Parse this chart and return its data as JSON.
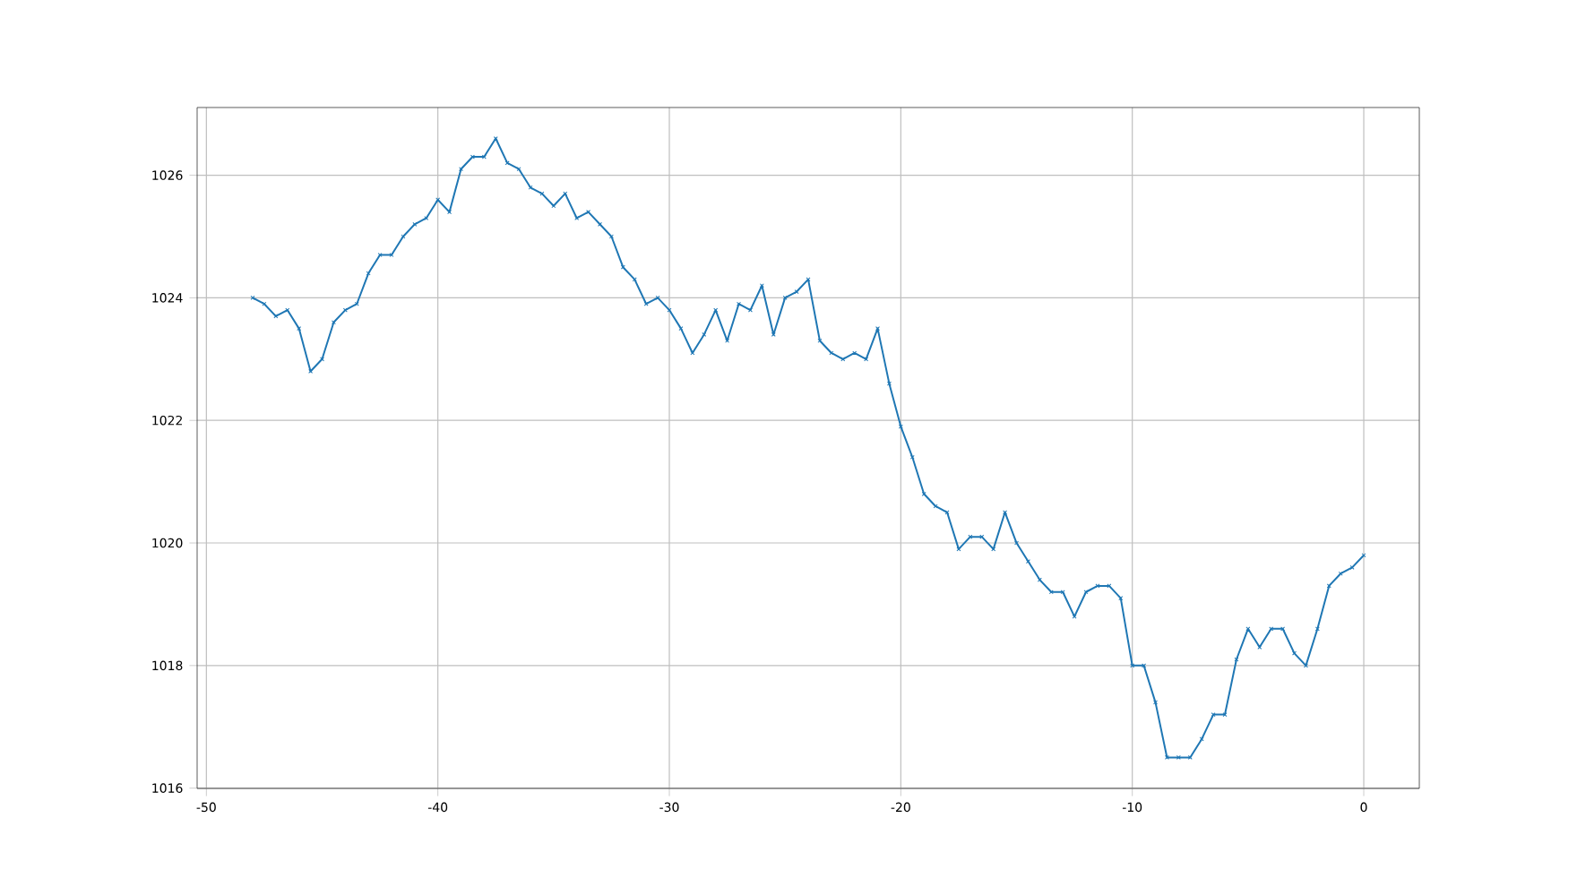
{
  "chart_data": {
    "type": "line",
    "color": "#1f77b4",
    "marker": "cross",
    "line_style": "solid",
    "grid": true,
    "xlim": [
      -50.4,
      2.4
    ],
    "ylim": [
      1015.995,
      1027.105
    ],
    "xticks": [
      -50,
      -40,
      -30,
      -20,
      -10,
      0
    ],
    "yticks": [
      1016,
      1018,
      1020,
      1022,
      1024,
      1026
    ],
    "x": [
      -48,
      -47.5,
      -47,
      -46.5,
      -46,
      -45.5,
      -45,
      -44.5,
      -44,
      -43.5,
      -43,
      -42.5,
      -42,
      -41.5,
      -41,
      -40.5,
      -40,
      -39.5,
      -39,
      -38.5,
      -38,
      -37.5,
      -37,
      -36.5,
      -36,
      -35.5,
      -35,
      -34.5,
      -34,
      -33.5,
      -33,
      -32.5,
      -32,
      -31.5,
      -31,
      -30.5,
      -30,
      -29.5,
      -29,
      -28.5,
      -28,
      -27.5,
      -27,
      -26.5,
      -26,
      -25.5,
      -25,
      -24.5,
      -24,
      -23.5,
      -23,
      -22.5,
      -22,
      -21.5,
      -21,
      -20.5,
      -20,
      -19.5,
      -19,
      -18.5,
      -18,
      -17.5,
      -17,
      -16.5,
      -16,
      -15.5,
      -15,
      -14.5,
      -14,
      -13.5,
      -13,
      -12.5,
      -12,
      -11.5,
      -11,
      -10.5,
      -10,
      -9.5,
      -9,
      -8.5,
      -8,
      -7.5,
      -7,
      -6.5,
      -6,
      -5.5,
      -5,
      -4.5,
      -4,
      -3.5,
      -3,
      -2.5,
      -2,
      -1.5,
      -1,
      -0.5,
      0
    ],
    "values": [
      1024.0,
      1023.9,
      1023.7,
      1023.8,
      1023.5,
      1022.8,
      1023.0,
      1023.6,
      1023.8,
      1023.9,
      1024.4,
      1024.7,
      1024.7,
      1025.0,
      1025.2,
      1025.3,
      1025.6,
      1025.4,
      1026.1,
      1026.3,
      1026.3,
      1026.6,
      1026.2,
      1026.1,
      1025.8,
      1025.7,
      1025.5,
      1025.7,
      1025.3,
      1025.4,
      1025.2,
      1025.0,
      1024.5,
      1024.3,
      1023.9,
      1024.0,
      1023.8,
      1023.5,
      1023.1,
      1023.4,
      1023.8,
      1023.3,
      1023.9,
      1023.8,
      1024.2,
      1023.4,
      1024.0,
      1024.1,
      1024.3,
      1023.3,
      1023.1,
      1023.0,
      1023.1,
      1023.0,
      1023.5,
      1022.6,
      1021.9,
      1021.4,
      1020.8,
      1020.6,
      1020.5,
      1019.9,
      1020.1,
      1020.1,
      1019.9,
      1020.5,
      1020.0,
      1019.7,
      1019.4,
      1019.2,
      1019.2,
      1018.8,
      1019.2,
      1019.3,
      1019.3,
      1019.1,
      1018.0,
      1018.0,
      1017.4,
      1016.5,
      1016.5,
      1016.5,
      1016.8,
      1017.2,
      1017.2,
      1018.1,
      1018.6,
      1018.3,
      1018.6,
      1018.6,
      1018.2,
      1018.0,
      1018.6,
      1019.3,
      1019.5,
      1019.6,
      1019.8
    ]
  }
}
